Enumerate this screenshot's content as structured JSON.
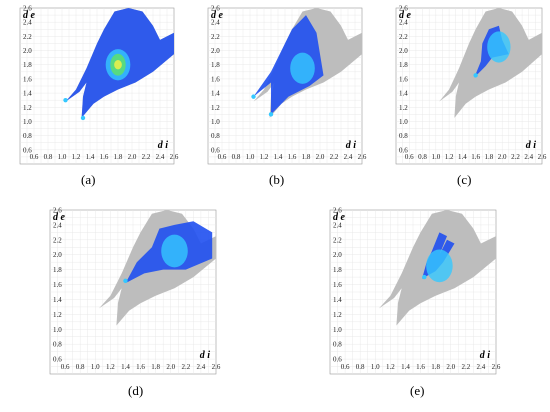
{
  "figure": {
    "captions": [
      "(a)",
      "(b)",
      "(c)",
      "(d)",
      "(e)"
    ]
  },
  "chart_data": [
    {
      "type": "heatmap",
      "panel": "(a)",
      "xlabel": "d i",
      "ylabel": "d e",
      "xticks": [
        "0.6",
        "0.8",
        "1.0",
        "1.2",
        "1.4",
        "1.6",
        "1.8",
        "2.0",
        "2.2",
        "2.4",
        "2.6"
      ],
      "yticks": [
        "0.6",
        "0.8",
        "1.0",
        "1.2",
        "1.4",
        "1.6",
        "1.8",
        "2.0",
        "2.2",
        "2.4",
        "2.6"
      ],
      "xlim": [
        0.4,
        2.6
      ],
      "ylim": [
        0.4,
        2.6
      ],
      "grid": true,
      "full_region_highlighted": true,
      "highlight_wing_tips": [
        [
          1.05,
          1.3
        ],
        [
          1.3,
          1.05
        ]
      ],
      "highlight_peak": [
        1.8,
        1.8
      ],
      "colors": {
        "gray": "#bcbcbc",
        "blue": "#1d3fe8",
        "cyan": "#35c8ff",
        "green": "#5ee06b",
        "yellow": "#e8ef4a"
      }
    },
    {
      "type": "heatmap",
      "panel": "(b)",
      "xlabel": "d i",
      "ylabel": "d e",
      "xticks": [
        "0.6",
        "0.8",
        "1.0",
        "1.2",
        "1.4",
        "1.6",
        "1.8",
        "2.0",
        "2.2",
        "2.4",
        "2.6"
      ],
      "yticks": [
        "0.6",
        "0.8",
        "1.0",
        "1.2",
        "1.4",
        "1.6",
        "1.8",
        "2.0",
        "2.2",
        "2.4",
        "2.6"
      ],
      "xlim": [
        0.4,
        2.6
      ],
      "ylim": [
        0.4,
        2.6
      ],
      "grid": true,
      "highlight_wing_tips": [
        [
          1.05,
          1.35
        ],
        [
          1.3,
          1.1
        ]
      ],
      "highlight_peak": [
        1.75,
        1.75
      ]
    },
    {
      "type": "heatmap",
      "panel": "(c)",
      "xlabel": "d i",
      "ylabel": "d e",
      "xticks": [
        "0.6",
        "0.8",
        "1.0",
        "1.2",
        "1.4",
        "1.6",
        "1.8",
        "2.0",
        "2.2",
        "2.4",
        "2.6"
      ],
      "yticks": [
        "0.6",
        "0.8",
        "1.0",
        "1.2",
        "1.4",
        "1.6",
        "1.8",
        "2.0",
        "2.2",
        "2.4",
        "2.6"
      ],
      "xlim": [
        0.4,
        2.6
      ],
      "ylim": [
        0.4,
        2.6
      ],
      "grid": true,
      "highlight_wing_tips": [
        [
          1.6,
          1.65
        ]
      ],
      "highlight_peak": [
        1.95,
        2.05
      ]
    },
    {
      "type": "heatmap",
      "panel": "(d)",
      "xlabel": "d i",
      "ylabel": "d e",
      "xticks": [
        "0.6",
        "0.8",
        "1.0",
        "1.2",
        "1.4",
        "1.6",
        "1.8",
        "2.0",
        "2.2",
        "2.4",
        "2.6"
      ],
      "yticks": [
        "0.6",
        "0.8",
        "1.0",
        "1.2",
        "1.4",
        "1.6",
        "1.8",
        "2.0",
        "2.2",
        "2.4",
        "2.6"
      ],
      "xlim": [
        0.4,
        2.6
      ],
      "ylim": [
        0.4,
        2.6
      ],
      "grid": true,
      "highlight_wing_tips": [
        [
          1.4,
          1.65
        ]
      ],
      "highlight_peak": [
        2.05,
        2.05
      ]
    },
    {
      "type": "heatmap",
      "panel": "(e)",
      "xlabel": "d i",
      "ylabel": "d e",
      "xticks": [
        "0.6",
        "0.8",
        "1.0",
        "1.2",
        "1.4",
        "1.6",
        "1.8",
        "2.0",
        "2.2",
        "2.4",
        "2.6"
      ],
      "yticks": [
        "0.6",
        "0.8",
        "1.0",
        "1.2",
        "1.4",
        "1.6",
        "1.8",
        "2.0",
        "2.2",
        "2.4",
        "2.6"
      ],
      "xlim": [
        0.4,
        2.6
      ],
      "ylim": [
        0.4,
        2.6
      ],
      "grid": true,
      "highlight_wing_tips": [
        [
          1.65,
          1.7
        ]
      ],
      "highlight_peak": [
        1.85,
        1.85
      ]
    }
  ]
}
